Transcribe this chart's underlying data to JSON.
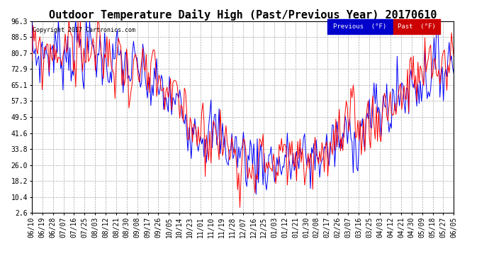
{
  "title": "Outdoor Temperature Daily High (Past/Previous Year) 20170610",
  "copyright_text": "Copyright 2017 Cartronics.com",
  "legend_labels": [
    "Previous  (°F)",
    "Past  (°F)"
  ],
  "y_ticks": [
    2.6,
    10.4,
    18.2,
    26.0,
    33.8,
    41.6,
    49.5,
    57.3,
    65.1,
    72.9,
    80.7,
    88.5,
    96.3
  ],
  "x_tick_dates": [
    "06/10",
    "06/19",
    "06/28",
    "07/07",
    "07/16",
    "07/25",
    "08/03",
    "08/12",
    "08/21",
    "08/30",
    "09/08",
    "09/17",
    "09/26",
    "10/05",
    "10/14",
    "10/23",
    "11/01",
    "11/10",
    "11/19",
    "11/28",
    "12/07",
    "12/16",
    "12/25",
    "01/03",
    "01/12",
    "01/21",
    "01/30",
    "02/08",
    "02/17",
    "02/26",
    "03/07",
    "03/16",
    "03/25",
    "04/03",
    "04/12",
    "04/21",
    "04/30",
    "05/09",
    "05/18",
    "05/27",
    "06/05"
  ],
  "background_color": "#ffffff",
  "grid_color": "#aaaaaa",
  "line_color_blue": "#0000ff",
  "line_color_red": "#ff0000",
  "legend_blue_bg": "#0000cc",
  "legend_red_bg": "#cc0000",
  "title_fontsize": 11,
  "tick_fontsize": 7,
  "ylim_min": 2.6,
  "ylim_max": 96.3,
  "num_points": 366
}
